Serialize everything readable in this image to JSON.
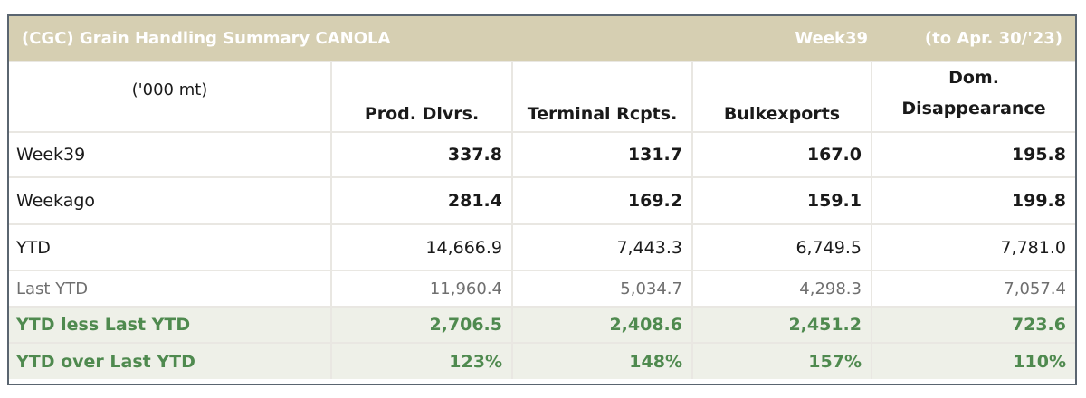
{
  "title": {
    "left": "(CGC) Grain Handling Summary CANOLA",
    "week": "Week39",
    "period": "(to Apr. 30/'23)"
  },
  "header": {
    "unit": "('000 mt)",
    "col1": "Prod. Dlvrs.",
    "col2": "Terminal Rcpts.",
    "col3": "Bulkexports",
    "col4_line1": "Dom.",
    "col4_line2": "Disappearance"
  },
  "rows": [
    {
      "label": "Week39",
      "values": [
        "337.8",
        "131.7",
        "167.0",
        "195.8"
      ]
    },
    {
      "label": "Weekago",
      "values": [
        "281.4",
        "169.2",
        "159.1",
        "199.8"
      ]
    },
    {
      "label": "YTD",
      "values": [
        "14,666.9",
        "7,443.3",
        "6,749.5",
        "7,781.0"
      ]
    },
    {
      "label": "Last YTD",
      "values": [
        "11,960.4",
        "5,034.7",
        "4,298.3",
        "7,057.4"
      ]
    },
    {
      "label": "YTD less Last YTD",
      "values": [
        "2,706.5",
        "2,408.6",
        "2,451.2",
        "723.6"
      ]
    },
    {
      "label": "YTD over Last YTD",
      "values": [
        "123%",
        "148%",
        "157%",
        "110%"
      ]
    }
  ],
  "colors": {
    "header_band": "#d6cfb2",
    "highlight_row_bg": "#eef0e8",
    "highlight_text": "#4f8a4f",
    "frame_border": "#5a6570"
  }
}
